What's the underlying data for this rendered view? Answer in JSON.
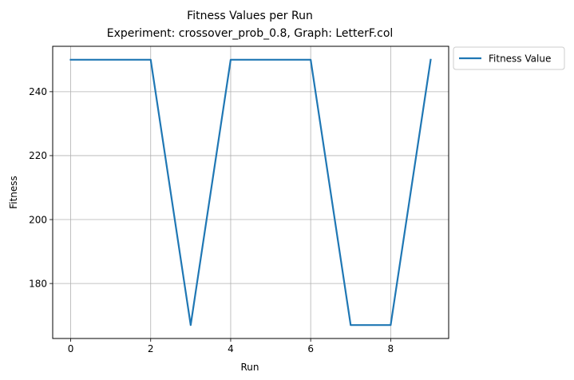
{
  "chart_data": {
    "type": "line",
    "title_line1": "Fitness Values per Run",
    "title_line2": "Experiment: crossover_prob_0.8, Graph: LetterF.col",
    "xlabel": "Run",
    "ylabel": "Fitness",
    "x": [
      0,
      1,
      2,
      3,
      4,
      5,
      6,
      7,
      8,
      9
    ],
    "series": [
      {
        "name": "Fitness Value",
        "color": "#1f77b4",
        "values": [
          250,
          250,
          250,
          167,
          250,
          250,
          250,
          167,
          167,
          250
        ]
      }
    ],
    "xlim": [
      -0.45,
      9.45
    ],
    "ylim": [
      162.8,
      254.2
    ],
    "xticks": [
      0,
      2,
      4,
      6,
      8
    ],
    "xtick_labels": [
      "0",
      "2",
      "4",
      "6",
      "8"
    ],
    "yticks": [
      180,
      200,
      220,
      240
    ],
    "ytick_labels": [
      "180",
      "200",
      "220",
      "240"
    ],
    "grid": true,
    "legend_position": "outside-top-right"
  }
}
